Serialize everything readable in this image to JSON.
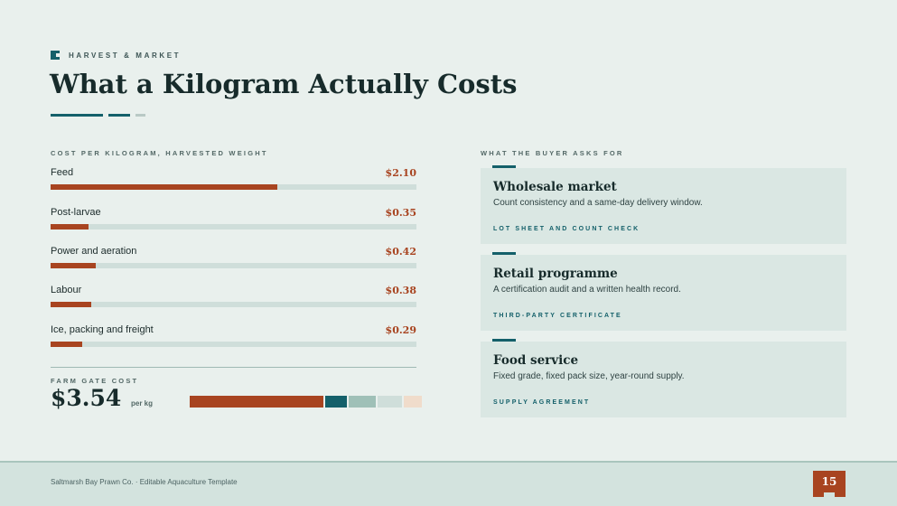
{
  "eyebrow": "HARVEST & MARKET",
  "title": "What a Kilogram Actually Costs",
  "left_section": {
    "label": "COST PER KILOGRAM, HARVESTED WEIGHT",
    "items": [
      {
        "label": "Feed",
        "value_text": "$2.10",
        "value": 2.1
      },
      {
        "label": "Post-larvae",
        "value_text": "$0.35",
        "value": 0.35
      },
      {
        "label": "Power and aeration",
        "value_text": "$0.42",
        "value": 0.42
      },
      {
        "label": "Labour",
        "value_text": "$0.38",
        "value": 0.38
      },
      {
        "label": "Ice, packing and freight",
        "value_text": "$0.29",
        "value": 0.29
      }
    ],
    "bar_max": 3.39,
    "total_label": "FARM GATE COST",
    "total_value": "$3.54",
    "total_unit": "per kg",
    "stack_colors": [
      "#a84420",
      "#14606a",
      "#9fc0b7",
      "#cfdeda",
      "#f0dccb"
    ]
  },
  "right_section": {
    "label": "WHAT THE BUYER ASKS FOR",
    "cards": [
      {
        "title": "Wholesale market",
        "desc": "Count consistency and a same-day delivery window.",
        "tag": "LOT SHEET AND COUNT CHECK"
      },
      {
        "title": "Retail programme",
        "desc": "A certification audit and a written health record.",
        "tag": "THIRD-PARTY CERTIFICATE"
      },
      {
        "title": "Food service",
        "desc": "Fixed grade, fixed pack size, year-round supply.",
        "tag": "SUPPLY AGREEMENT"
      }
    ]
  },
  "footer": {
    "text": "Saltmarsh Bay Prawn Co. · Editable Aquaculture Template",
    "page": "15"
  },
  "colors": {
    "accent": "#a84420",
    "teal": "#14606a",
    "background": "#e9f0ed"
  }
}
